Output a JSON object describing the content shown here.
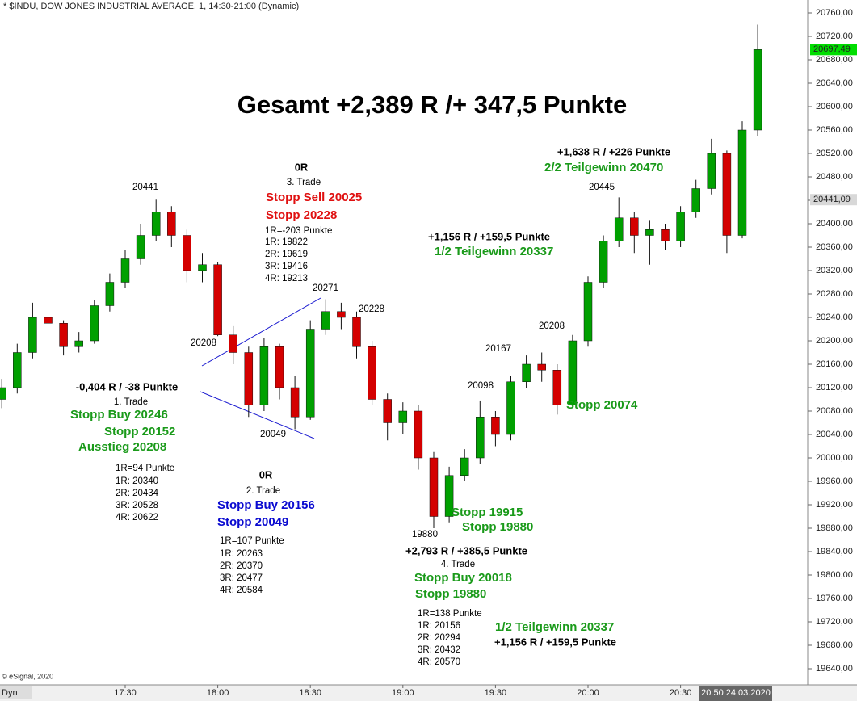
{
  "chart_data": {
    "type": "candlestick",
    "title": "* $INDU, DOW JONES INDUSTRIAL AVERAGE, 1, 14:30-21:00 (Dynamic)",
    "x": [
      "16:50",
      "16:55",
      "17:00",
      "17:05",
      "17:10",
      "17:15",
      "17:20",
      "17:25",
      "17:30",
      "17:35",
      "17:40",
      "17:45",
      "17:50",
      "17:55",
      "18:00",
      "18:05",
      "18:10",
      "18:15",
      "18:20",
      "18:25",
      "18:30",
      "18:35",
      "18:40",
      "18:45",
      "18:50",
      "18:55",
      "19:00",
      "19:05",
      "19:10",
      "19:15",
      "19:20",
      "19:25",
      "19:30",
      "19:35",
      "19:40",
      "19:45",
      "19:50",
      "19:55",
      "20:00",
      "20:05",
      "20:10",
      "20:15",
      "20:20",
      "20:25",
      "20:30",
      "20:35",
      "20:40",
      "20:45",
      "20:50",
      "20:55"
    ],
    "open": [
      20100,
      20120,
      20180,
      20240,
      20230,
      20190,
      20200,
      20260,
      20300,
      20340,
      20380,
      20420,
      20380,
      20320,
      20330,
      20210,
      20180,
      20090,
      20190,
      20120,
      20070,
      20220,
      20250,
      20240,
      20190,
      20100,
      20060,
      20080,
      20000,
      19900,
      19970,
      20000,
      20070,
      20040,
      20130,
      20160,
      20150,
      20090,
      20200,
      20300,
      20370,
      20410,
      20380,
      20390,
      20370,
      20420,
      20460,
      20520,
      20380,
      20560
    ],
    "high": [
      20135,
      20195,
      20265,
      20250,
      20235,
      20215,
      20270,
      20315,
      20355,
      20400,
      20441,
      20430,
      20390,
      20350,
      20335,
      20225,
      20190,
      20205,
      20195,
      20140,
      20235,
      20271,
      20265,
      20250,
      20200,
      20110,
      20095,
      20090,
      20010,
      19985,
      20015,
      20098,
      20080,
      20140,
      20175,
      20180,
      20160,
      20210,
      20310,
      20380,
      20445,
      20420,
      20405,
      20400,
      20430,
      20475,
      20545,
      20525,
      20575,
      20740
    ],
    "low": [
      20085,
      20110,
      20170,
      20200,
      20175,
      20180,
      20195,
      20250,
      20290,
      20330,
      20370,
      20360,
      20300,
      20300,
      20208,
      20160,
      20070,
      20080,
      20100,
      20049,
      20065,
      20210,
      20220,
      20170,
      20090,
      20030,
      20040,
      19980,
      19880,
      19890,
      19960,
      19990,
      20020,
      20030,
      20120,
      20130,
      20074,
      20085,
      20190,
      20290,
      20360,
      20350,
      20330,
      20355,
      20360,
      20410,
      20450,
      20350,
      20375,
      20550
    ],
    "close": [
      20120,
      20180,
      20240,
      20230,
      20190,
      20200,
      20260,
      20300,
      20340,
      20380,
      20420,
      20380,
      20320,
      20330,
      20210,
      20180,
      20090,
      20190,
      20120,
      20070,
      20220,
      20250,
      20240,
      20190,
      20100,
      20060,
      20080,
      20000,
      19900,
      19970,
      20000,
      20070,
      20040,
      20130,
      20160,
      20150,
      20090,
      20200,
      20300,
      20370,
      20410,
      20380,
      20390,
      20370,
      20420,
      20460,
      20520,
      20380,
      20560,
      20697.49
    ],
    "up_color": "#00a000",
    "down_color": "#d40000",
    "ylim": [
      19640,
      20760
    ],
    "yticks": [
      {
        "value": 20760,
        "label": "20760,00"
      },
      {
        "value": 20720,
        "label": "20720,00"
      },
      {
        "value": 20680,
        "label": "20680,00"
      },
      {
        "value": 20640,
        "label": "20640,00"
      },
      {
        "value": 20600,
        "label": "20600,00"
      },
      {
        "value": 20560,
        "label": "20560,00"
      },
      {
        "value": 20520,
        "label": "20520,00"
      },
      {
        "value": 20480,
        "label": "20480,00"
      },
      {
        "value": 20440,
        "label": "20440,00"
      },
      {
        "value": 20400,
        "label": "20400,00"
      },
      {
        "value": 20360,
        "label": "20360,00"
      },
      {
        "value": 20320,
        "label": "20320,00"
      },
      {
        "value": 20280,
        "label": "20280,00"
      },
      {
        "value": 20240,
        "label": "20240,00"
      },
      {
        "value": 20200,
        "label": "20200,00"
      },
      {
        "value": 20160,
        "label": "20160,00"
      },
      {
        "value": 20120,
        "label": "20120,00"
      },
      {
        "value": 20080,
        "label": "20080,00"
      },
      {
        "value": 20040,
        "label": "20040,00"
      },
      {
        "value": 20000,
        "label": "20000,00"
      },
      {
        "value": 19960,
        "label": "19960,00"
      },
      {
        "value": 19920,
        "label": "19920,00"
      },
      {
        "value": 19880,
        "label": "19880,00"
      },
      {
        "value": 19840,
        "label": "19840,00"
      },
      {
        "value": 19800,
        "label": "19800,00"
      },
      {
        "value": 19760,
        "label": "19760,00"
      },
      {
        "value": 19720,
        "label": "19720,00"
      },
      {
        "value": 19680,
        "label": "19680,00"
      },
      {
        "value": 19640,
        "label": "19640,00"
      }
    ],
    "xticks": [
      "17:30",
      "18:00",
      "18:30",
      "19:00",
      "19:30",
      "20:00",
      "20:30"
    ],
    "grid": false,
    "last_price": {
      "value": 20697.49,
      "label": "20697,49"
    },
    "marker_price": {
      "value": 20441.09,
      "label": "20441,09"
    },
    "crosshair_label": "20:50 24.03.2020",
    "dyn_label": "Dyn",
    "copyright": "© eSignal, 2020",
    "annotations": [
      "Gesamt +2,389 R /+ 347,5 Punkte",
      "20441",
      "0R",
      "3. Trade",
      "Stopp Sell 20025",
      "Stopp 20228",
      "1R=-203 Punkte",
      "1R: 19822",
      "2R: 19619",
      "3R: 19416",
      "4R: 19213",
      "20271",
      "20228",
      "20208",
      "-0,404 R / -38 Punkte",
      "1. Trade",
      "Stopp Buy 20246",
      "Stopp 20152",
      "Ausstieg 20208",
      "1R=94 Punkte",
      "1R: 20340",
      "2R: 20434",
      "3R: 20528",
      "4R: 20622",
      "20049",
      "0R",
      "2. Trade",
      "Stopp Buy 20156",
      "Stopp 20049",
      "1R=107 Punkte",
      "1R: 20263",
      "2R: 20370",
      "3R: 20477",
      "4R: 20584",
      "20098",
      "20167",
      "20208",
      "Stopp 20074",
      "20445",
      "+1,638 R / +226 Punkte",
      "2/2 Teilgewinn 20470",
      "+1,156 R / +159,5 Punkte",
      "1/2 Teilgewinn 20337",
      "Stopp 19915",
      "Stopp 19880",
      "19880",
      "+2,793 R / +385,5 Punkte",
      "4. Trade",
      "Stopp Buy 20018",
      "Stopp 19880",
      "1R=138 Punkte",
      "1R: 20156",
      "2R: 20294",
      "3R: 20432",
      "4R: 20570",
      "1/2 Teilgewinn 20337",
      "+1,156 R / +159,5 Punkte"
    ]
  }
}
